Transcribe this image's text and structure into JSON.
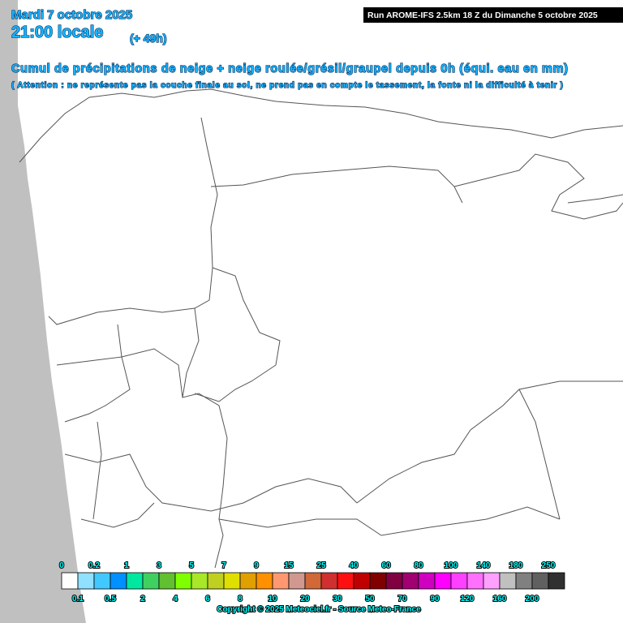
{
  "header": {
    "date": "Mardi 7 octobre 2025",
    "time": "21:00 locale",
    "lead": "(+ 49h)",
    "run": "Run AROME-IFS 2.5km 18 Z du Dimanche 5 octobre 2025",
    "title": "Cumul de précipitations de neige + neige roulée/grésil/graupel depuis 0h (équi. eau en mm)",
    "note": "( Attention : ne représente pas la couche finale au sol, ne prend pas en compte le tassement, la fonte ni la difficulté à tenir )"
  },
  "legend": {
    "items": [
      {
        "label": 0,
        "color": "#ffffff"
      },
      {
        "label": 0.1,
        "color": "#90e0ff"
      },
      {
        "label": 0.2,
        "color": "#40c8ff"
      },
      {
        "label": 0.5,
        "color": "#0090ff"
      },
      {
        "label": 1,
        "color": "#00e8a0"
      },
      {
        "label": 2,
        "color": "#40d060"
      },
      {
        "label": 3,
        "color": "#60c030"
      },
      {
        "label": 4,
        "color": "#80ff00"
      },
      {
        "label": 5,
        "color": "#a8e828"
      },
      {
        "label": 6,
        "color": "#c0d020"
      },
      {
        "label": 7,
        "color": "#e0e000"
      },
      {
        "label": 8,
        "color": "#e0a000"
      },
      {
        "label": 9,
        "color": "#ff9000"
      },
      {
        "label": 10,
        "color": "#ff9870"
      },
      {
        "label": 15,
        "color": "#d09890"
      },
      {
        "label": 20,
        "color": "#d06838"
      },
      {
        "label": 25,
        "color": "#d03030"
      },
      {
        "label": 30,
        "color": "#ff1010"
      },
      {
        "label": 40,
        "color": "#c00000"
      },
      {
        "label": 50,
        "color": "#800000"
      },
      {
        "label": 60,
        "color": "#800040"
      },
      {
        "label": 70,
        "color": "#a00070"
      },
      {
        "label": 80,
        "color": "#d000c0"
      },
      {
        "label": 90,
        "color": "#ff00ff"
      },
      {
        "label": 100,
        "color": "#ff40ff"
      },
      {
        "label": 120,
        "color": "#ff70ff"
      },
      {
        "label": 140,
        "color": "#ffa0ff"
      },
      {
        "label": 160,
        "color": "#c0c0c0"
      },
      {
        "label": 180,
        "color": "#808080"
      },
      {
        "label": 200,
        "color": "#606060"
      },
      {
        "label": 250,
        "color": "#303030"
      }
    ]
  },
  "copyright": "Copyright © 2025 Meteociel.fr - Source Meteo-France"
}
